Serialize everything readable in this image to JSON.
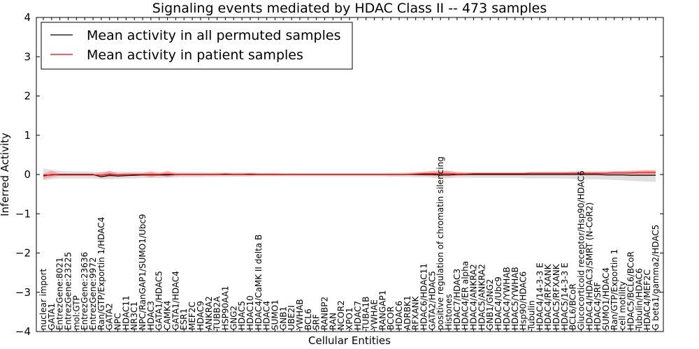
{
  "chart_data": {
    "type": "line",
    "title": "Signaling events mediated by HDAC Class II -- 473 samples",
    "xlabel": "Cellular Entities",
    "ylabel": "Inferred Activity",
    "ylim": [
      -4,
      4
    ],
    "yticks": [
      4,
      3,
      2,
      1,
      0,
      -1,
      -2,
      -3,
      -4
    ],
    "ytick_labels": [
      "4",
      "3",
      "2",
      "1",
      "0",
      "−1",
      "−2",
      "−3",
      "−4"
    ],
    "grid": false,
    "legend": {
      "placement": "top-left",
      "entries": [
        {
          "label": "Mean activity in all permuted samples",
          "color": "#000000"
        },
        {
          "label": "Mean activity in patient samples",
          "color": "#ff0000"
        }
      ]
    },
    "categories": [
      "nuclear import",
      "GATA1",
      "EntrezGene:8021",
      "EntrezGene:23225",
      "mol:GTP",
      "EntrezGene:23636",
      "EntrezGene:9972",
      "Ran/GTP/Exportin 1/HDAC4",
      "GATA2",
      "NPC",
      "HDAC11",
      "NR3C1",
      "NPC/RanGAP1/SUMO1/Ubc9",
      "HDAC3",
      "GATA1/HDAC5",
      "CAMK4",
      "GATA1/HDAC4",
      "ESR1",
      "MEF2C",
      "HDAC9",
      "ANKRA2",
      "TUBB2A",
      "HSP90AA1",
      "GNG2",
      "HDAC5",
      "HDAC10",
      "HDAC4/CaMK II delta B",
      "HDAC4",
      "SUMO1",
      "GNB1",
      "UBE2I",
      "YWHAB",
      "BCL6",
      "SRF",
      "RANBP2",
      "RAN",
      "NCOR2",
      "XPO1",
      "HDAC7",
      "TUBA1B",
      "YWHAE",
      "RANGAP1",
      "BCOR",
      "HDAC6",
      "ADRBK1",
      "RFXANK",
      "HDAC6/HDAC11",
      "GATA2/HDAC5",
      "positive regulation of chromatin silencing",
      "Histones",
      "HDAC7/HDAC3",
      "HDAC4/ER alpha",
      "HDAC4/ANKRA2",
      "HDAC5/ANKRA2",
      "GNB1/GNG2",
      "HDAC4/Ubc9",
      "HDAC4/YWHAB",
      "HDAC5/YWHAB",
      "Hsp90/HDAC6",
      "Tubulin",
      "HDAC4/14-3-3 E",
      "HDAC4/RFXANK",
      "HDAC5/RFXANK",
      "HDAC5/14-3-3 E",
      "BCL6/BCoR",
      "Glucocorticoid receptor/Hsp90/HDAC6",
      "HDAC4/HDAC3/SMRT (N-CoR2)",
      "HDAC4/SRF",
      "SUMO1/HDAC4",
      "Ran/GTP/Exportin 1",
      "cell motility",
      "HDAC5/BCL6/BCoR",
      "Tubulin/HDAC6",
      "HDAC4/MEF2C",
      "G beta1/gamma2/HDAC5"
    ],
    "series": [
      {
        "name": "Mean activity in all permuted samples",
        "color": "#000000",
        "values": [
          -0.02,
          -0.01,
          0,
          0,
          0,
          0,
          0,
          -0.06,
          -0.02,
          -0.04,
          -0.03,
          -0.02,
          -0.01,
          -0.01,
          -0.01,
          -0.01,
          0,
          0,
          0,
          0,
          0,
          0,
          0,
          0,
          0,
          0,
          0,
          0,
          0,
          0,
          0,
          0,
          0,
          0,
          0,
          0,
          0,
          0,
          0,
          0,
          0,
          0,
          0,
          0,
          0,
          0,
          0,
          0,
          -0.01,
          -0.01,
          0,
          0,
          0,
          0,
          0,
          0,
          0,
          0,
          0,
          0,
          0,
          0,
          0,
          0,
          0,
          0,
          0,
          0,
          -0.01,
          -0.01,
          -0.01,
          -0.02,
          -0.02,
          -0.02,
          -0.02
        ],
        "band_lower": [
          -0.15,
          -0.12,
          -0.1,
          -0.1,
          -0.1,
          -0.1,
          -0.1,
          -0.12,
          -0.12,
          -0.11,
          -0.1,
          -0.1,
          -0.09,
          -0.09,
          -0.09,
          -0.08,
          -0.08,
          -0.07,
          -0.07,
          -0.07,
          -0.06,
          -0.06,
          -0.06,
          -0.06,
          -0.06,
          -0.06,
          -0.05,
          -0.05,
          -0.05,
          -0.05,
          -0.05,
          -0.05,
          -0.05,
          -0.05,
          -0.05,
          -0.05,
          -0.05,
          -0.05,
          -0.05,
          -0.05,
          -0.05,
          -0.05,
          -0.06,
          -0.06,
          -0.06,
          -0.07,
          -0.07,
          -0.08,
          -0.1,
          -0.1,
          -0.08,
          -0.08,
          -0.08,
          -0.08,
          -0.08,
          -0.08,
          -0.08,
          -0.08,
          -0.09,
          -0.1,
          -0.1,
          -0.1,
          -0.1,
          -0.1,
          -0.11,
          -0.12,
          -0.12,
          -0.12,
          -0.13,
          -0.14,
          -0.15,
          -0.16,
          -0.17,
          -0.18,
          -0.19
        ],
        "band_upper": [
          0.15,
          0.12,
          0.09,
          0.08,
          0.08,
          0.08,
          0.07,
          0.06,
          0.07,
          0.07,
          0.07,
          0.07,
          0.07,
          0.06,
          0.06,
          0.06,
          0.06,
          0.06,
          0.06,
          0.06,
          0.05,
          0.05,
          0.05,
          0.05,
          0.05,
          0.05,
          0.04,
          0.04,
          0.04,
          0.04,
          0.04,
          0.04,
          0.04,
          0.04,
          0.04,
          0.04,
          0.04,
          0.04,
          0.04,
          0.04,
          0.04,
          0.04,
          0.05,
          0.05,
          0.05,
          0.06,
          0.06,
          0.07,
          0.08,
          0.08,
          0.06,
          0.06,
          0.06,
          0.06,
          0.06,
          0.06,
          0.06,
          0.06,
          0.06,
          0.07,
          0.07,
          0.07,
          0.07,
          0.07,
          0.08,
          0.08,
          0.08,
          0.08,
          0.08,
          0.09,
          0.09,
          0.1,
          0.1,
          0.1,
          0.1
        ]
      },
      {
        "name": "Mean activity in patient samples",
        "color": "#ff0000",
        "values": [
          -0.04,
          0.0,
          -0.01,
          -0.01,
          -0.01,
          -0.01,
          -0.01,
          -0.02,
          0.01,
          -0.01,
          0.0,
          0.0,
          0.0,
          0.0,
          0.0,
          0.01,
          0.0,
          0.0,
          0.0,
          0.0,
          0.0,
          0.0,
          0.01,
          0.0,
          0.0,
          0.01,
          0.0,
          0.0,
          0.0,
          0.0,
          0.0,
          0.0,
          0.0,
          0.0,
          0.0,
          0.0,
          0.0,
          0.0,
          0.0,
          0.0,
          0.0,
          0.0,
          0.0,
          0.0,
          0.0,
          0.01,
          0.02,
          0.02,
          0.02,
          0.02,
          0.01,
          0.01,
          0.02,
          0.02,
          0.02,
          0.02,
          0.02,
          0.02,
          0.02,
          0.03,
          0.03,
          0.03,
          0.03,
          0.03,
          0.03,
          0.03,
          0.03,
          0.03,
          0.03,
          0.04,
          0.04,
          0.04,
          0.05,
          0.05,
          0.05
        ],
        "band_lower": [
          -0.11,
          -0.07,
          -0.03,
          -0.03,
          -0.03,
          -0.03,
          -0.03,
          -0.07,
          -0.07,
          -0.04,
          -0.03,
          -0.03,
          -0.03,
          -0.07,
          -0.03,
          -0.07,
          -0.03,
          -0.02,
          -0.02,
          -0.02,
          -0.02,
          -0.02,
          -0.01,
          -0.02,
          -0.02,
          -0.02,
          -0.02,
          -0.02,
          -0.02,
          -0.01,
          -0.01,
          -0.01,
          -0.01,
          -0.01,
          -0.01,
          -0.01,
          -0.01,
          -0.01,
          -0.01,
          -0.01,
          -0.01,
          -0.01,
          -0.01,
          -0.01,
          -0.01,
          -0.02,
          -0.03,
          -0.04,
          -0.05,
          -0.05,
          -0.03,
          -0.02,
          -0.01,
          -0.01,
          -0.01,
          -0.01,
          -0.01,
          -0.01,
          -0.01,
          -0.01,
          -0.01,
          -0.01,
          -0.01,
          -0.01,
          -0.01,
          -0.01,
          -0.01,
          -0.01,
          -0.01,
          -0.01,
          -0.01,
          -0.01,
          -0.01,
          -0.01,
          0.0
        ],
        "band_upper": [
          0.02,
          0.09,
          0.02,
          0.02,
          0.02,
          0.02,
          0.02,
          0.05,
          0.09,
          0.03,
          0.03,
          0.03,
          0.03,
          0.08,
          0.03,
          0.09,
          0.03,
          0.03,
          0.03,
          0.03,
          0.03,
          0.03,
          0.04,
          0.03,
          0.03,
          0.04,
          0.03,
          0.03,
          0.03,
          0.02,
          0.02,
          0.02,
          0.02,
          0.02,
          0.02,
          0.02,
          0.02,
          0.02,
          0.02,
          0.02,
          0.02,
          0.02,
          0.02,
          0.02,
          0.03,
          0.05,
          0.07,
          0.09,
          0.1,
          0.09,
          0.06,
          0.05,
          0.05,
          0.05,
          0.05,
          0.05,
          0.05,
          0.05,
          0.05,
          0.06,
          0.06,
          0.06,
          0.06,
          0.06,
          0.07,
          0.07,
          0.07,
          0.07,
          0.07,
          0.08,
          0.08,
          0.09,
          0.1,
          0.11,
          0.11
        ]
      }
    ]
  }
}
